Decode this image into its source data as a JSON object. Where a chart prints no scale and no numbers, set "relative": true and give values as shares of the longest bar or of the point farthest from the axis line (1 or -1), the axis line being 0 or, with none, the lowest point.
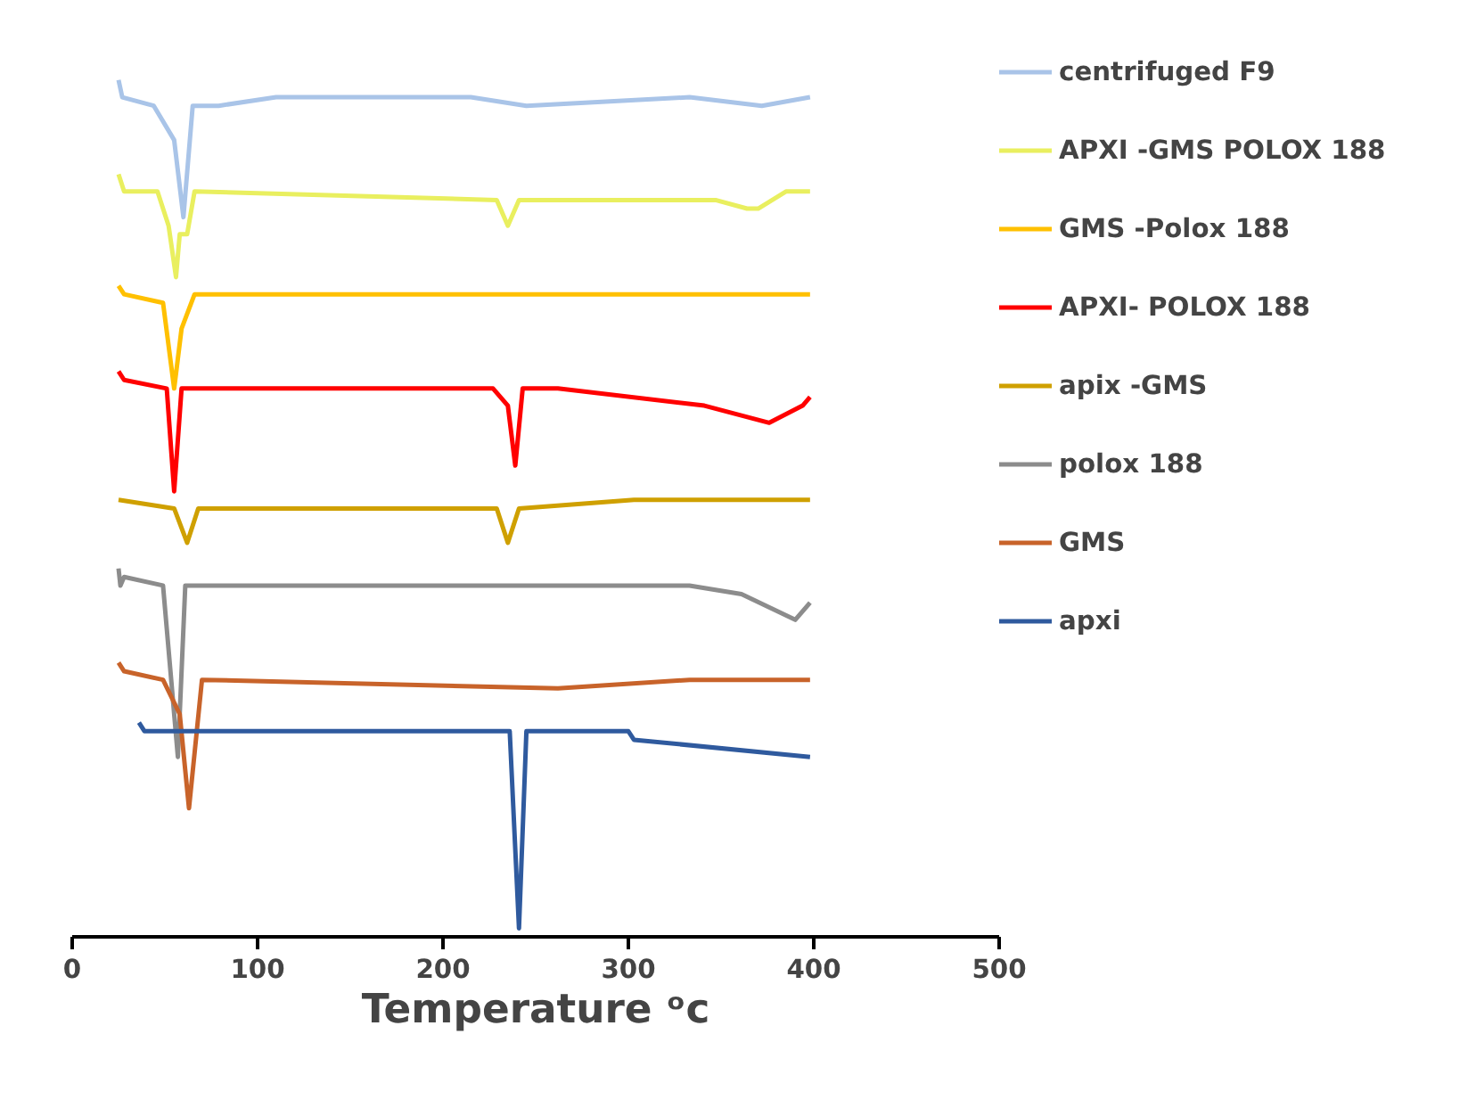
{
  "chart_data": {
    "type": "line",
    "xlabel": "Temperature ᵒc",
    "xlim": [
      0,
      500
    ],
    "xticks": [
      0,
      100,
      200,
      300,
      400,
      500
    ],
    "relative": true,
    "legend": "right",
    "line_style": "solid",
    "series": [
      {
        "name": "centrifuged F9",
        "color": "#a9c4e8",
        "x": [
          25,
          27,
          44,
          55,
          60,
          65,
          79,
          110,
          215,
          245,
          333,
          372,
          398
        ],
        "values": [
          1.0,
          0.98,
          0.97,
          0.93,
          0.84,
          0.97,
          0.97,
          0.98,
          0.98,
          0.97,
          0.98,
          0.97,
          0.98
        ]
      },
      {
        "name": "APXI -GMS POLOX 188",
        "color": "#e9ef5f",
        "x": [
          25,
          28,
          46,
          52,
          56,
          58,
          62,
          66,
          229,
          235,
          241,
          347,
          364,
          370,
          385,
          398
        ],
        "values": [
          0.89,
          0.87,
          0.87,
          0.83,
          0.77,
          0.82,
          0.82,
          0.87,
          0.86,
          0.83,
          0.86,
          0.86,
          0.85,
          0.85,
          0.87,
          0.87
        ]
      },
      {
        "name": "GMS -Polox 188",
        "color": "#ffc000",
        "x": [
          25,
          28,
          49,
          55,
          59,
          66,
          154,
          398
        ],
        "values": [
          0.76,
          0.75,
          0.74,
          0.64,
          0.71,
          0.75,
          0.75,
          0.75
        ]
      },
      {
        "name": "APXI- POLOX 188",
        "color": "#ff0000",
        "x": [
          25,
          28,
          51,
          55,
          59,
          227,
          235,
          239,
          243,
          259,
          262,
          341,
          376,
          394,
          398
        ],
        "values": [
          0.66,
          0.65,
          0.64,
          0.52,
          0.64,
          0.64,
          0.62,
          0.55,
          0.64,
          0.64,
          0.64,
          0.62,
          0.6,
          0.62,
          0.63
        ]
      },
      {
        "name": "apix -GMS",
        "color": "#cfa000",
        "x": [
          25,
          55,
          62,
          68,
          229,
          235,
          241,
          303,
          385,
          398
        ],
        "values": [
          0.51,
          0.5,
          0.46,
          0.5,
          0.5,
          0.46,
          0.5,
          0.51,
          0.51,
          0.51
        ]
      },
      {
        "name": "polox 188",
        "color": "#8c8c8c",
        "x": [
          25,
          26,
          28,
          49,
          57,
          61,
          333,
          361,
          390,
          398
        ],
        "values": [
          0.43,
          0.41,
          0.42,
          0.41,
          0.21,
          0.41,
          0.41,
          0.4,
          0.37,
          0.39
        ]
      },
      {
        "name": "GMS",
        "color": "#c8632a",
        "x": [
          25,
          28,
          49,
          58,
          63,
          70,
          262,
          333,
          398
        ],
        "values": [
          0.32,
          0.31,
          0.3,
          0.26,
          0.15,
          0.3,
          0.29,
          0.3,
          0.3
        ]
      },
      {
        "name": "apxi",
        "color": "#2f5a9e",
        "x": [
          36,
          39,
          204,
          211,
          236,
          241,
          245,
          300,
          303,
          398
        ],
        "values": [
          0.25,
          0.24,
          0.24,
          0.24,
          0.24,
          0.01,
          0.24,
          0.24,
          0.23,
          0.21
        ]
      }
    ]
  }
}
